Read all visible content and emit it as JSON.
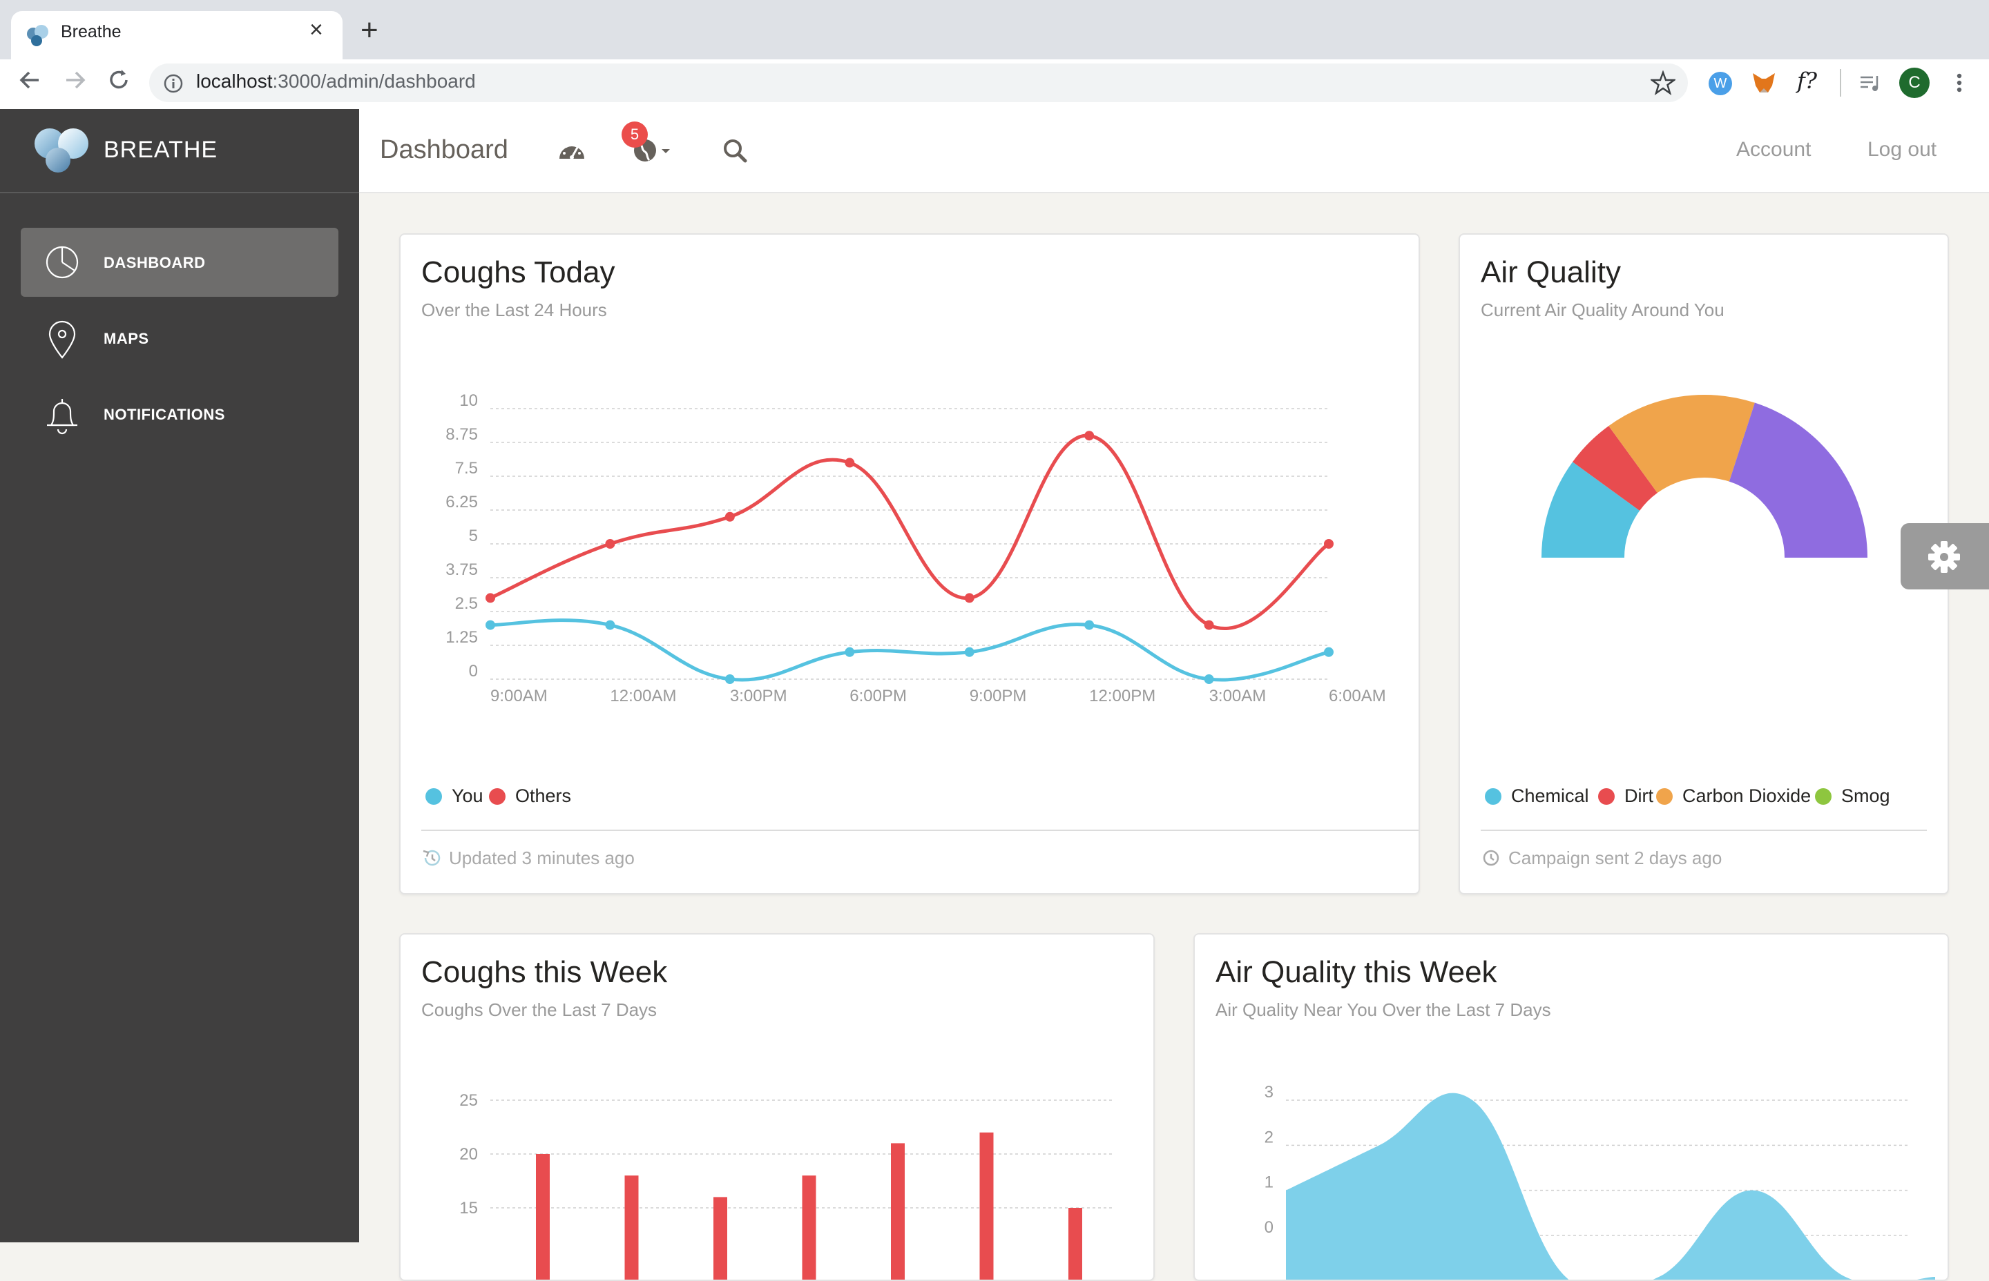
{
  "browser": {
    "tab_title": "Breathe",
    "tab_close": "×",
    "new_tab": "+",
    "url_host": "localhost",
    "url_path": ":3000/admin/dashboard",
    "profile_initial": "C",
    "ext_w": "W",
    "ext_f": "f?"
  },
  "sidebar": {
    "brand": "BREATHE",
    "items": [
      {
        "label": "DASHBOARD",
        "icon": "pie-chart-icon",
        "active": true
      },
      {
        "label": "MAPS",
        "icon": "map-pin-icon",
        "active": false
      },
      {
        "label": "NOTIFICATIONS",
        "icon": "bell-icon",
        "active": false
      }
    ]
  },
  "topbar": {
    "title": "Dashboard",
    "badge_count": "5",
    "account": "Account",
    "logout": "Log out"
  },
  "cards": {
    "coughs_today": {
      "title": "Coughs Today",
      "subtitle": "Over the Last 24 Hours",
      "footer": "Updated 3 minutes ago"
    },
    "air_quality": {
      "title": "Air Quality",
      "subtitle": "Current Air Quality Around You",
      "footer": "Campaign sent 2 days ago"
    },
    "coughs_week": {
      "title": "Coughs this Week",
      "subtitle": "Coughs Over the Last 7 Days"
    },
    "air_week": {
      "title": "Air Quality this Week",
      "subtitle": "Air Quality Near You Over the Last 7 Days"
    }
  },
  "colors": {
    "blue": "#55c2e0",
    "red": "#e84c4f",
    "orange": "#f0a44b",
    "purple": "#8f6ce0",
    "green": "#8ec63f",
    "area_blue": "#7ed0ea"
  },
  "chart_data": [
    {
      "type": "line",
      "title": "Coughs Today",
      "categories": [
        "9:00AM",
        "12:00AM",
        "3:00PM",
        "6:00PM",
        "9:00PM",
        "12:00PM",
        "3:00AM",
        "6:00AM"
      ],
      "y_ticks": [
        "10",
        "8.75",
        "7.5",
        "6.25",
        "5",
        "3.75",
        "2.5",
        "1.25",
        "0"
      ],
      "ylim": [
        0,
        10
      ],
      "series": [
        {
          "name": "You",
          "color": "#55c2e0",
          "values": [
            2,
            2,
            0,
            1,
            1,
            2,
            0,
            1
          ]
        },
        {
          "name": "Others",
          "color": "#e84c4f",
          "values": [
            3,
            5,
            6,
            8,
            3,
            9,
            2,
            5
          ]
        }
      ]
    },
    {
      "type": "pie",
      "title": "Air Quality",
      "series": [
        {
          "name": "Chemical",
          "color": "#55c2e0",
          "value": 20
        },
        {
          "name": "Dirt",
          "color": "#e84c4f",
          "value": 10
        },
        {
          "name": "Carbon Dioxide",
          "color": "#f0a44b",
          "value": 30
        },
        {
          "name": "Smog",
          "color": "#8ec63f",
          "value": 0
        },
        {
          "name": "",
          "color": "#8f6ce0",
          "value": 40
        }
      ]
    },
    {
      "type": "bar",
      "title": "Coughs this Week",
      "y_ticks": [
        "25",
        "20",
        "15"
      ],
      "ylim": [
        15,
        25
      ],
      "values": [
        20,
        18,
        16,
        18,
        21,
        22,
        15
      ],
      "color": "#e84c4f"
    },
    {
      "type": "area",
      "title": "Air Quality this Week",
      "y_ticks": [
        "3",
        "2",
        "1",
        "0"
      ],
      "ylim": [
        0,
        3
      ],
      "values": [
        1,
        2,
        3,
        0,
        0,
        1,
        0
      ],
      "color": "#7ed0ea"
    }
  ]
}
